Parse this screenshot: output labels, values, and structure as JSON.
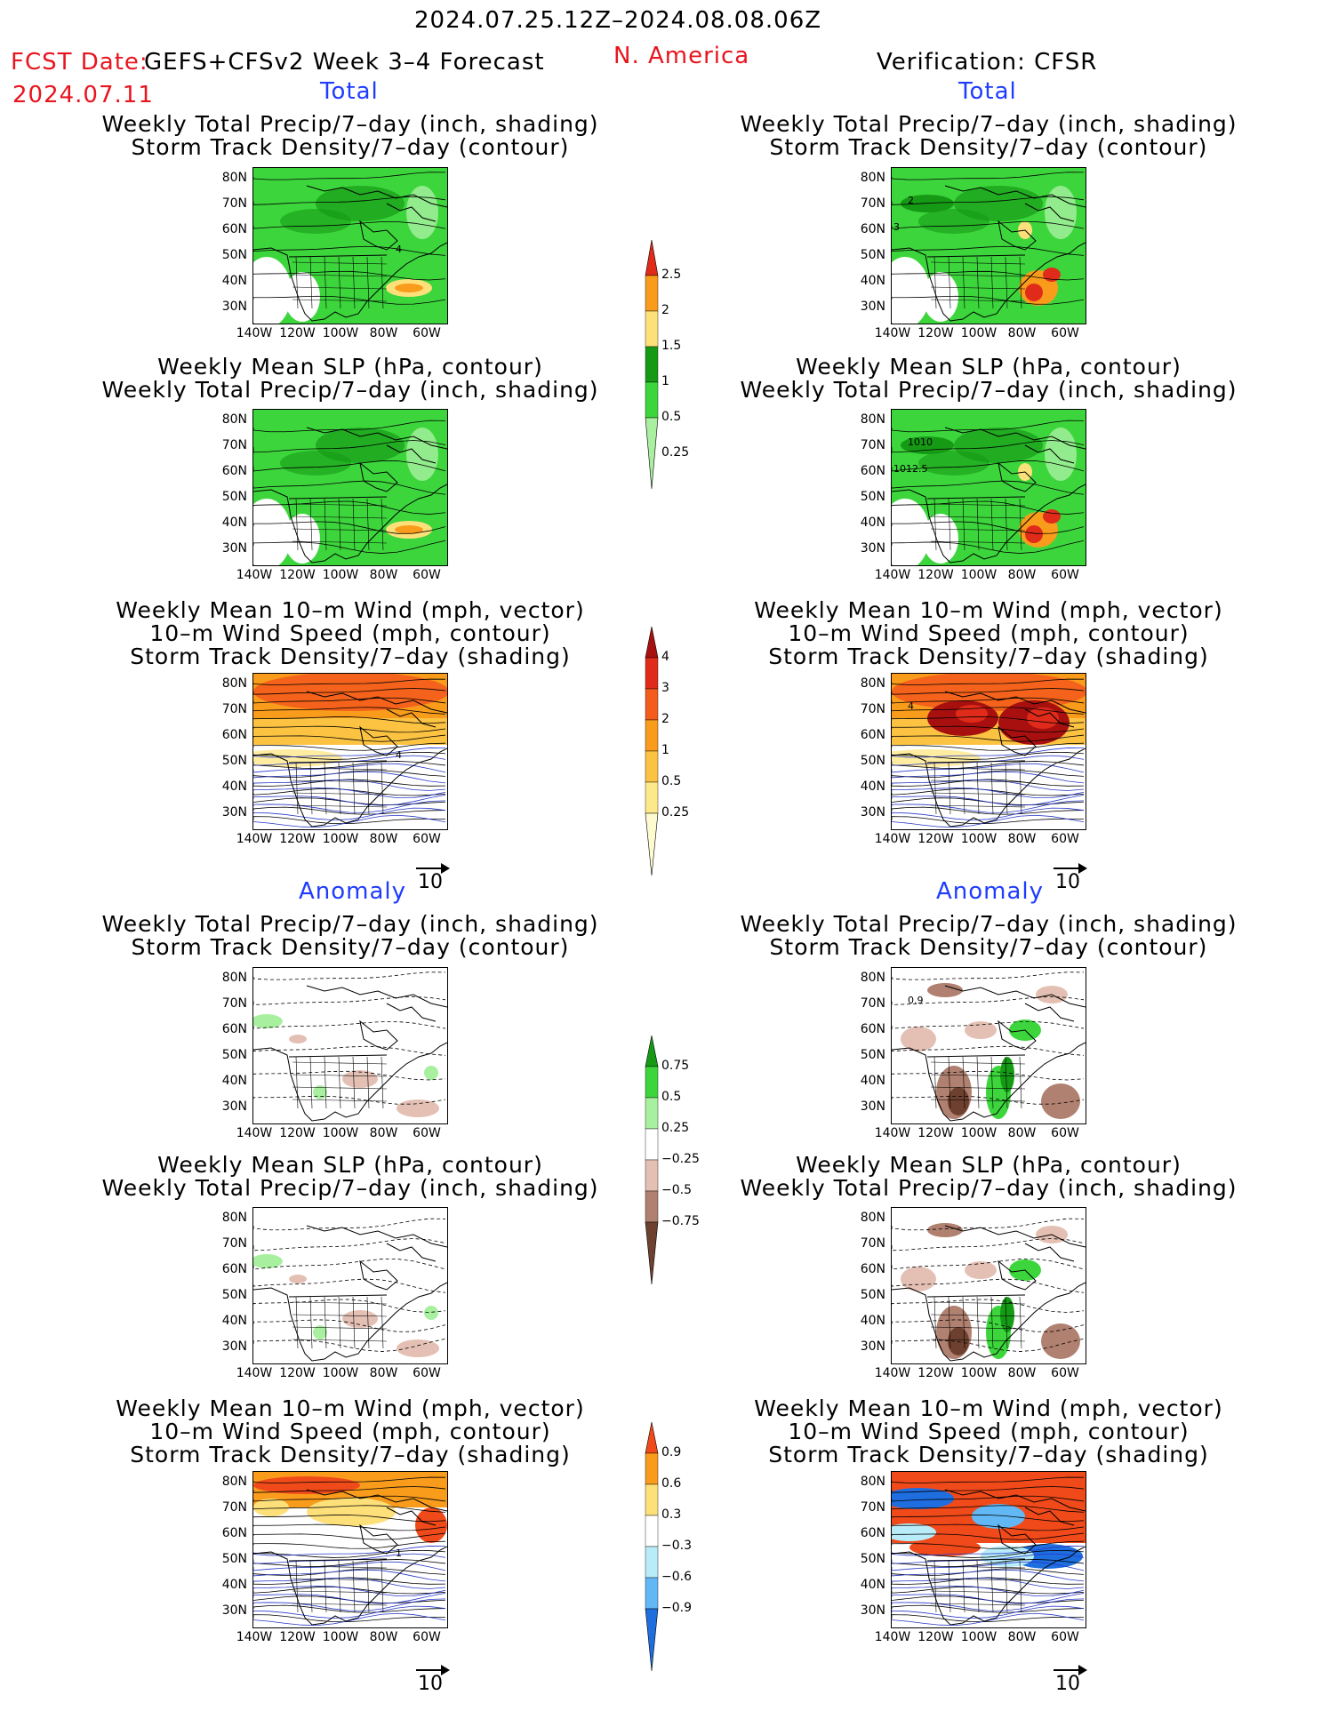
{
  "header": {
    "period": "2024.07.25.12Z–2024.08.08.06Z",
    "fcst_label": "FCST Date:",
    "fcst_model": "GEFS+CFSv2 Week 3–4 Forecast",
    "fcst_date": "2024.07.11",
    "region": "N. America",
    "verification": "Verification: CFSR"
  },
  "section_total": "Total",
  "section_anomaly": "Anomaly",
  "titles": {
    "precip_storm": [
      "Weekly Total Precip/7–day (inch, shading)",
      "Storm Track Density/7–day (contour)"
    ],
    "slp_precip": [
      "Weekly Mean SLP (hPa, contour)",
      "Weekly Total Precip/7–day (inch, shading)"
    ],
    "wind_storm": [
      "Weekly Mean 10–m Wind (mph, vector)",
      "10–m Wind Speed (mph, contour)",
      "Storm Track Density/7–day (shading)"
    ]
  },
  "axes": {
    "lat_labels": [
      "80N",
      "70N",
      "60N",
      "50N",
      "40N",
      "30N"
    ],
    "lon_labels": [
      "140W",
      "120W",
      "100W",
      "80W",
      "60W"
    ]
  },
  "vector_ref": "10",
  "contour_labels": {
    "fc_total_storm": "4",
    "fc_anom_wind": "1",
    "obs_total_precip_a": "2",
    "obs_total_precip_b": "3",
    "obs_total_slp_a": "1010",
    "obs_total_slp_b": "1012.5",
    "obs_total_wind": "4",
    "obs_anom_precip": "0.9"
  },
  "colorbars": {
    "precip_total": {
      "labels": [
        "2.5",
        "2",
        "1.5",
        "1",
        "0.5",
        "0.25"
      ],
      "colors": [
        "#e02b1a",
        "#f99c1c",
        "#fee07a",
        "#169a16",
        "#3cd63c",
        "#a8f0a0"
      ]
    },
    "storm_total": {
      "labels": [
        "4",
        "3",
        "2",
        "1",
        "0.5",
        "0.25"
      ],
      "colors": [
        "#a81010",
        "#e02b1a",
        "#f35c1c",
        "#f99c1c",
        "#fcc342",
        "#fee98a",
        "#fffbd0"
      ]
    },
    "precip_anom": {
      "labels": [
        "0.75",
        "0.5",
        "0.25",
        "−0.25",
        "−0.5",
        "−0.75"
      ],
      "colors": [
        "#169a16",
        "#3cd63c",
        "#a8f0a0",
        "#ffffff",
        "#e4c0b4",
        "#b08070",
        "#6e4030"
      ]
    },
    "storm_anom": {
      "labels": [
        "0.9",
        "0.6",
        "0.3",
        "−0.3",
        "−0.6",
        "−0.9"
      ],
      "colors": [
        "#f14a1a",
        "#f99c1c",
        "#fee07a",
        "#ffffff",
        "#b8ecf8",
        "#62b8f4",
        "#1e6ee0"
      ]
    }
  }
}
